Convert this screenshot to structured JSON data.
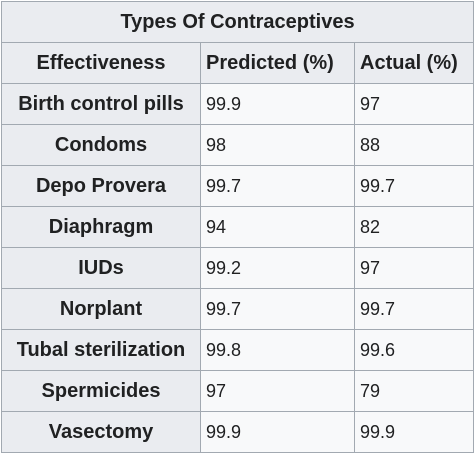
{
  "table": {
    "title": "Types Of Contraceptives",
    "headers": [
      "Effectiveness",
      "Predicted (%)",
      "Actual (%)"
    ],
    "rows": [
      {
        "method": "Birth control pills",
        "predicted": "99.9",
        "actual": "97"
      },
      {
        "method": "Condoms",
        "predicted": "98",
        "actual": "88"
      },
      {
        "method": "Depo Provera",
        "predicted": "99.7",
        "actual": "99.7"
      },
      {
        "method": "Diaphragm",
        "predicted": "94",
        "actual": "82"
      },
      {
        "method": "IUDs",
        "predicted": "99.2",
        "actual": "97"
      },
      {
        "method": "Norplant",
        "predicted": "99.7",
        "actual": "99.7"
      },
      {
        "method": "Tubal sterilization",
        "predicted": "99.8",
        "actual": "99.6"
      },
      {
        "method": "Spermicides",
        "predicted": "97",
        "actual": "79"
      },
      {
        "method": "Vasectomy",
        "predicted": "99.9",
        "actual": "99.9"
      }
    ]
  },
  "colors": {
    "header_bg": "#eaecf0",
    "cell_bg": "#f8f9fa",
    "border": "#a2a9b1",
    "text": "#202122"
  }
}
